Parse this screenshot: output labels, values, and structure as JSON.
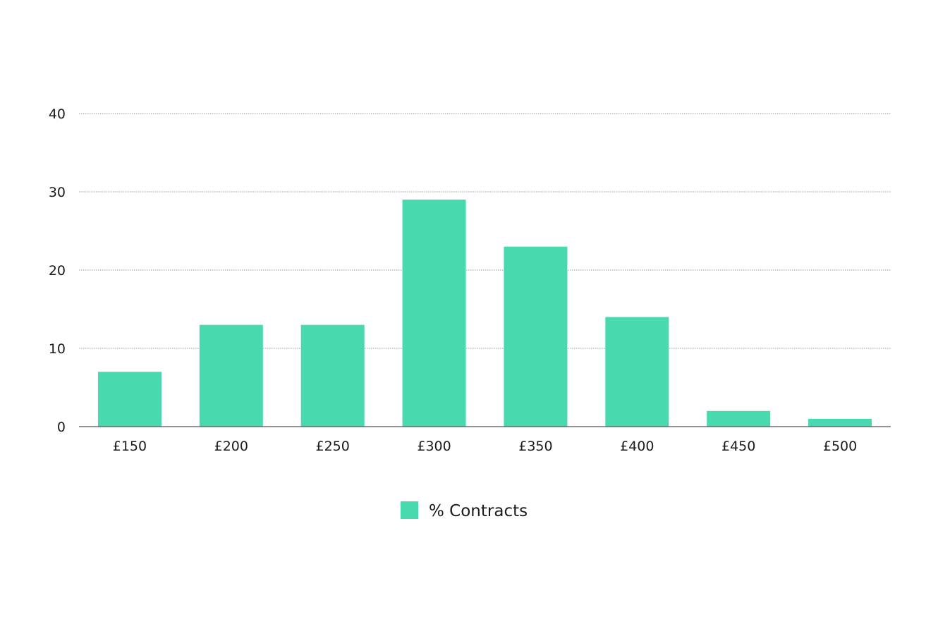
{
  "chart_data": {
    "type": "bar",
    "categories": [
      "£150",
      "£200",
      "£250",
      "£300",
      "£350",
      "£400",
      "£450",
      "£500"
    ],
    "series": [
      {
        "name": "% Contracts",
        "values": [
          7,
          13,
          13,
          29,
          23,
          14,
          2,
          1
        ],
        "color": "#48d9ae"
      }
    ],
    "ylim": [
      0,
      40
    ],
    "yticks": [
      0,
      10,
      20,
      30,
      40
    ],
    "grid": true,
    "legend": "bottom-center"
  }
}
